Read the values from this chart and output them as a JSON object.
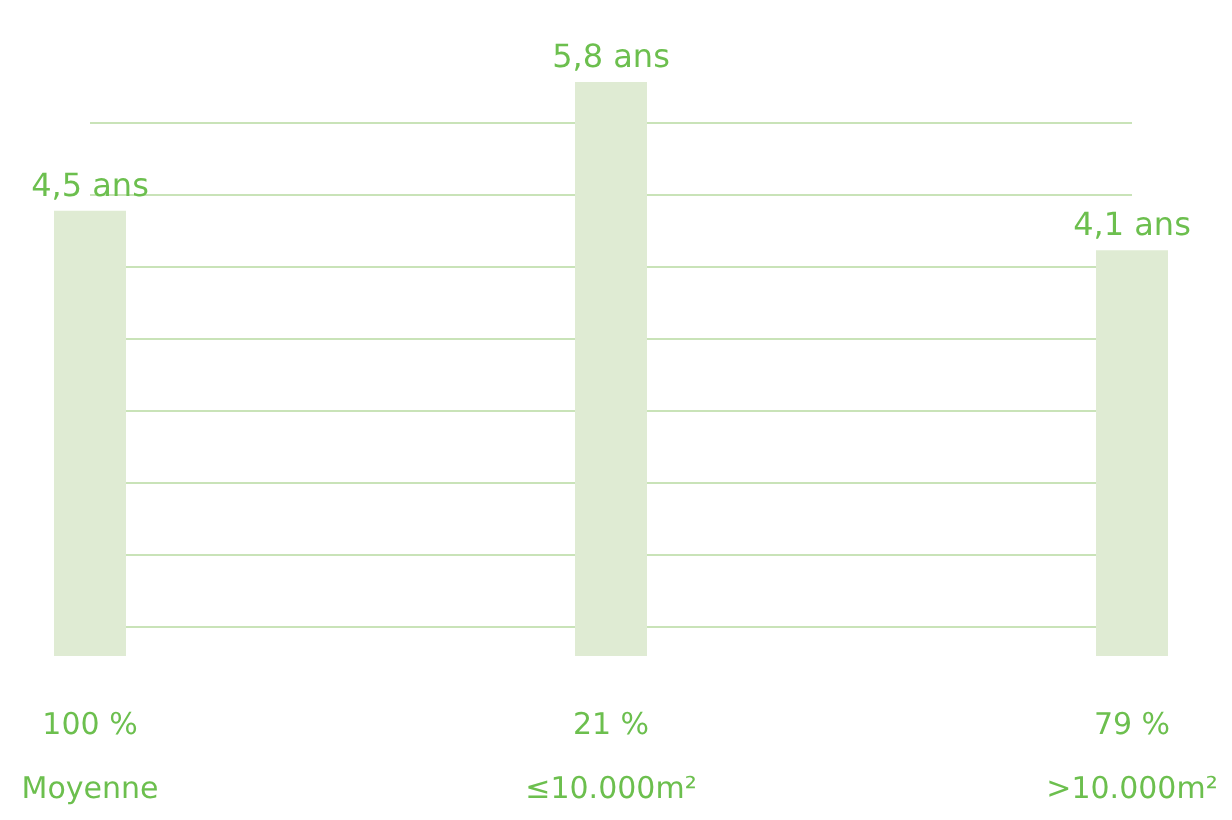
{
  "chart_data": {
    "type": "bar",
    "categories": [
      "100 %\nMoyenne",
      "21 %\n≤10.000m²",
      "79 %\n>10.000m²"
    ],
    "values": [
      4.5,
      5.8,
      4.1
    ],
    "value_labels": [
      "4,5 ans",
      "5,8 ans",
      "4,1 ans"
    ],
    "color": "#dfebd3",
    "ylim": [
      0,
      5.8
    ],
    "yticks": [
      {
        "value": 0.29,
        "label": null
      },
      {
        "value": 1.02,
        "label": null
      },
      {
        "value": 1.75,
        "label": null
      },
      {
        "value": 2.48,
        "label": null
      },
      {
        "value": 3.21,
        "label": null
      },
      {
        "value": 3.94,
        "label": null
      },
      {
        "value": 4.67,
        "label": null
      },
      {
        "value": 5.4,
        "label": null
      }
    ],
    "grid": "y",
    "tick_labels": "x"
  }
}
